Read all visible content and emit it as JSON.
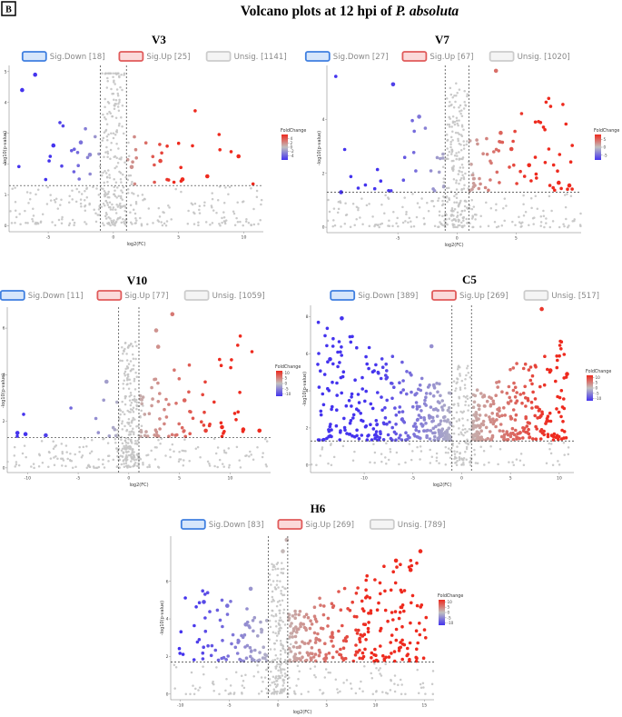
{
  "panel_letter": "B",
  "figure_title": {
    "prefix": "Volcano plots at 12 hpi of ",
    "species": "P. absoluta"
  },
  "colors": {
    "down_border": "#3f7fe0",
    "down_fill": "#d6e6fb",
    "up_border": "#e05a5a",
    "up_fill": "#fbdada",
    "unsig_border": "#cccccc",
    "unsig_fill": "#f4f4f4",
    "unsig_point": "#c4c4c4",
    "grad_low": "#4433ee",
    "grad_mid": "#c0c0c0",
    "grad_high": "#ee2a1e",
    "threshold_line": "#333333"
  },
  "chart_data": [
    {
      "id": "V3",
      "type": "scatter",
      "title": "V3",
      "xlabel": "log2(FC)",
      "ylabel": "-log10(p-value)",
      "xlim": [
        -8,
        11.5
      ],
      "ylim": [
        -0.2,
        5.2
      ],
      "xticks": [
        -5,
        0,
        5,
        10
      ],
      "yticks": [
        0,
        1,
        2,
        3,
        4,
        5
      ],
      "fc_thresholds": [
        -1,
        1
      ],
      "p_threshold": 1.3,
      "legend": {
        "down_label": "Sig.Down [18]",
        "up_label": "Sig.Up [25]",
        "unsig_label": "Unsig. [1141]"
      },
      "colorbar": {
        "title": "FoldChange",
        "range": [
          -6,
          6
        ],
        "ticks": [
          4,
          2,
          0,
          -2,
          -4
        ]
      },
      "counts": {
        "down": 18,
        "up": 25,
        "unsig": 1141
      },
      "seed": 3,
      "extra_points": [
        {
          "x": -6,
          "y": 4.9
        },
        {
          "x": -7,
          "y": 4.4
        },
        {
          "x": -4.6,
          "y": 2.6
        },
        {
          "x": -2.5,
          "y": 2.7
        },
        {
          "x": -1.8,
          "y": 2.3
        },
        {
          "x": 3.6,
          "y": 2.1
        },
        {
          "x": 5.3,
          "y": 1.5
        },
        {
          "x": 7.2,
          "y": 1.6
        },
        {
          "x": 9.6,
          "y": 2.25
        },
        {
          "x": 1.4,
          "y": 1.9
        }
      ]
    },
    {
      "id": "V7",
      "type": "scatter",
      "title": "V7",
      "xlabel": "log2(FC)",
      "ylabel": "-log10(p-value)",
      "xlim": [
        -11,
        10.5
      ],
      "ylim": [
        -0.2,
        6.0
      ],
      "xticks": [
        -5,
        0,
        5
      ],
      "yticks": [
        0,
        2,
        4
      ],
      "fc_thresholds": [
        -1,
        1
      ],
      "p_threshold": 1.3,
      "legend": {
        "down_label": "Sig.Down [27]",
        "up_label": "Sig.Up [67]",
        "unsig_label": "Unsig. [1020]"
      },
      "colorbar": {
        "title": "FoldChange",
        "range": [
          -8,
          8
        ],
        "ticks": [
          5,
          0,
          -5
        ]
      },
      "counts": {
        "down": 27,
        "up": 67,
        "unsig": 1020
      },
      "seed": 7,
      "extra_points": [
        {
          "x": -9.8,
          "y": 1.3
        },
        {
          "x": -5.4,
          "y": 5.3
        },
        {
          "x": -3.2,
          "y": 4.1
        },
        {
          "x": 3.3,
          "y": 5.8
        },
        {
          "x": 3.7,
          "y": 3.5
        },
        {
          "x": 6.1,
          "y": 2.3
        },
        {
          "x": 8.6,
          "y": 1.65
        },
        {
          "x": 9.5,
          "y": 1.55
        },
        {
          "x": 4.6,
          "y": 2.9
        }
      ]
    },
    {
      "id": "V10",
      "type": "scatter",
      "title": "V10",
      "xlabel": "log2(FC)",
      "ylabel": "-log10(p-value)",
      "xlim": [
        -12,
        14
      ],
      "ylim": [
        -0.2,
        6.9
      ],
      "xticks": [
        -10,
        -5,
        0,
        5,
        10
      ],
      "yticks": [
        0,
        2,
        4,
        6
      ],
      "fc_thresholds": [
        -1,
        1
      ],
      "p_threshold": 1.3,
      "legend": {
        "down_label": "Sig.Down [11]",
        "up_label": "Sig.Up [77]",
        "unsig_label": "Unsig. [1059]"
      },
      "colorbar": {
        "title": "FoldChange",
        "range": [
          -12,
          12
        ],
        "ticks": [
          10,
          5,
          0,
          -5,
          -10
        ]
      },
      "counts": {
        "down": 11,
        "up": 77,
        "unsig": 1059
      },
      "seed": 10,
      "extra_points": [
        {
          "x": -11,
          "y": 1.5
        },
        {
          "x": -10.2,
          "y": 1.45
        },
        {
          "x": -8.2,
          "y": 1.4
        },
        {
          "x": -2.2,
          "y": 3.7
        },
        {
          "x": 4.3,
          "y": 6.6
        },
        {
          "x": 2.7,
          "y": 5.9
        },
        {
          "x": 2.9,
          "y": 5.2
        },
        {
          "x": 5.5,
          "y": 2.9
        },
        {
          "x": 7.6,
          "y": 1.6
        },
        {
          "x": 11.3,
          "y": 1.65
        },
        {
          "x": 12.9,
          "y": 1.6
        },
        {
          "x": 9.2,
          "y": 1.75
        }
      ]
    },
    {
      "id": "C5",
      "type": "scatter",
      "title": "C5",
      "xlabel": "log2(FC)",
      "ylabel": "-log10(p-value)",
      "xlim": [
        -15.5,
        11.5
      ],
      "ylim": [
        -0.4,
        8.6
      ],
      "xticks": [
        -10,
        -5,
        0,
        5,
        10
      ],
      "yticks": [
        0,
        2,
        4,
        6,
        8
      ],
      "fc_thresholds": [
        -1,
        1
      ],
      "p_threshold": 1.3,
      "legend": {
        "down_label": "Sig.Down [389]",
        "up_label": "Sig.Up [269]",
        "unsig_label": "Unsig. [517]"
      },
      "colorbar": {
        "title": "FoldChange",
        "range": [
          -12,
          12
        ],
        "ticks": [
          10,
          5,
          0,
          -5,
          -10
        ]
      },
      "counts": {
        "down": 389,
        "up": 269,
        "unsig": 517
      },
      "seed": 5,
      "extra_points": [
        {
          "x": -12.3,
          "y": 7.9
        },
        {
          "x": -13.5,
          "y": 5.7
        },
        {
          "x": -3.1,
          "y": 6.4
        },
        {
          "x": 10.8,
          "y": 4.9
        },
        {
          "x": 9.1,
          "y": 5.1
        },
        {
          "x": 8.2,
          "y": 8.4
        }
      ]
    },
    {
      "id": "H6",
      "type": "scatter",
      "title": "H6",
      "xlabel": "log2(FC)",
      "ylabel": "-log10(p-value)",
      "xlim": [
        -11,
        16
      ],
      "ylim": [
        -0.3,
        8.4
      ],
      "xticks": [
        -10,
        -5,
        0,
        5,
        10,
        15
      ],
      "yticks": [
        0,
        2,
        4,
        6
      ],
      "fc_thresholds": [
        -1,
        1
      ],
      "p_threshold": 1.7,
      "legend": {
        "down_label": "Sig.Down [83]",
        "up_label": "Sig.Up [269]",
        "unsig_label": "Unsig. [789]"
      },
      "colorbar": {
        "title": "FoldChange",
        "range": [
          -12,
          12
        ],
        "ticks": [
          10,
          5,
          0,
          -5,
          -10
        ]
      },
      "counts": {
        "down": 83,
        "up": 269,
        "unsig": 789
      },
      "seed": 6,
      "extra_points": [
        {
          "x": 14.6,
          "y": 7.6
        },
        {
          "x": 12.1,
          "y": 7.1
        },
        {
          "x": -2.8,
          "y": 5.6
        },
        {
          "x": -7.6,
          "y": 4.9
        },
        {
          "x": -5.2,
          "y": 4.7
        },
        {
          "x": -3.3,
          "y": 3.7
        },
        {
          "x": 0.9,
          "y": 8.2
        },
        {
          "x": 0.5,
          "y": 7.6
        },
        {
          "x": 13.6,
          "y": 6.6
        }
      ]
    }
  ]
}
